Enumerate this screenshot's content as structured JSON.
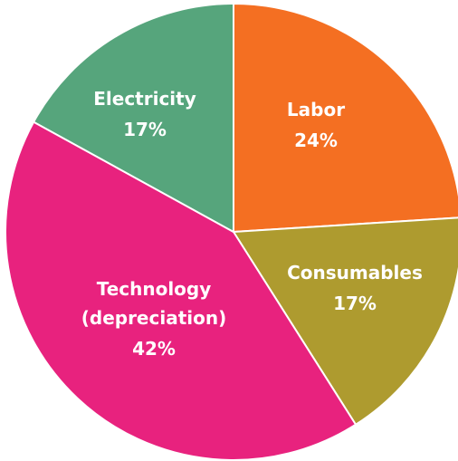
{
  "chart_data": {
    "type": "pie",
    "title": "",
    "legend": "none",
    "slices": [
      {
        "name": "Labor",
        "value": 24,
        "value_label": "24%",
        "color": "#f46f22"
      },
      {
        "name": "Consumables",
        "value": 17,
        "value_label": "17%",
        "color": "#ae9b2f"
      },
      {
        "name": "Technology (depreciation)",
        "value": 42,
        "value_label": "42%",
        "color": "#e8227e",
        "label_lines": [
          "Technology",
          "(depreciation)"
        ]
      },
      {
        "name": "Electricity",
        "value": 17,
        "value_label": "17%",
        "color": "#56a57c"
      }
    ]
  }
}
